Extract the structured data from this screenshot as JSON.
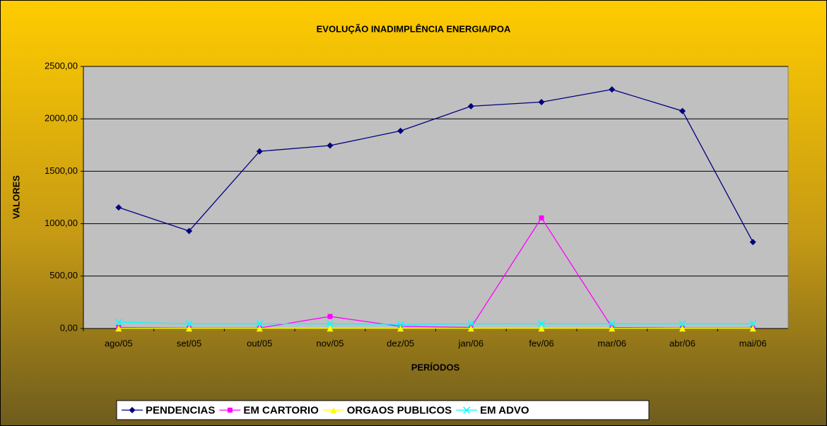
{
  "chart_data": {
    "type": "line",
    "title": "EVOLUÇÃO INADIMPLÊNCIA ENERGIA/POA",
    "x_label": "PERÍODOS",
    "y_label": "VALORES",
    "categories": [
      "ago/05",
      "set/05",
      "out/05",
      "nov/05",
      "dez/05",
      "jan/06",
      "fev/06",
      "mar/06",
      "abr/06",
      "mai/06"
    ],
    "series": [
      {
        "name": "PENDENCIAS",
        "color": "#000080",
        "marker": "diamond",
        "values": [
          1155,
          930,
          1690,
          1745,
          1885,
          2120,
          2160,
          2280,
          2075,
          825
        ]
      },
      {
        "name": "EM CARTORIO",
        "color": "#FF00FF",
        "marker": "square",
        "values": [
          10,
          5,
          5,
          115,
          20,
          10,
          1055,
          10,
          5,
          5
        ]
      },
      {
        "name": "ORGAOS PUBLICOS",
        "color": "#FFFF00",
        "marker": "triangle",
        "values": [
          2,
          2,
          2,
          2,
          2,
          2,
          2,
          2,
          2,
          2
        ]
      },
      {
        "name": "EM ADVO",
        "color": "#00FFFF",
        "marker": "x",
        "values": [
          60,
          45,
          45,
          45,
          40,
          45,
          45,
          45,
          45,
          45
        ]
      }
    ],
    "ylim": [
      0,
      2500
    ],
    "yticks": [
      {
        "value": 0,
        "label": "0,00"
      },
      {
        "value": 500,
        "label": "500,00"
      },
      {
        "value": 1000,
        "label": "1000,00"
      },
      {
        "value": 1500,
        "label": "1500,00"
      },
      {
        "value": 2000,
        "label": "2000,00"
      },
      {
        "value": 2500,
        "label": "2500,00"
      }
    ],
    "grid": true,
    "legend": "bottom"
  }
}
